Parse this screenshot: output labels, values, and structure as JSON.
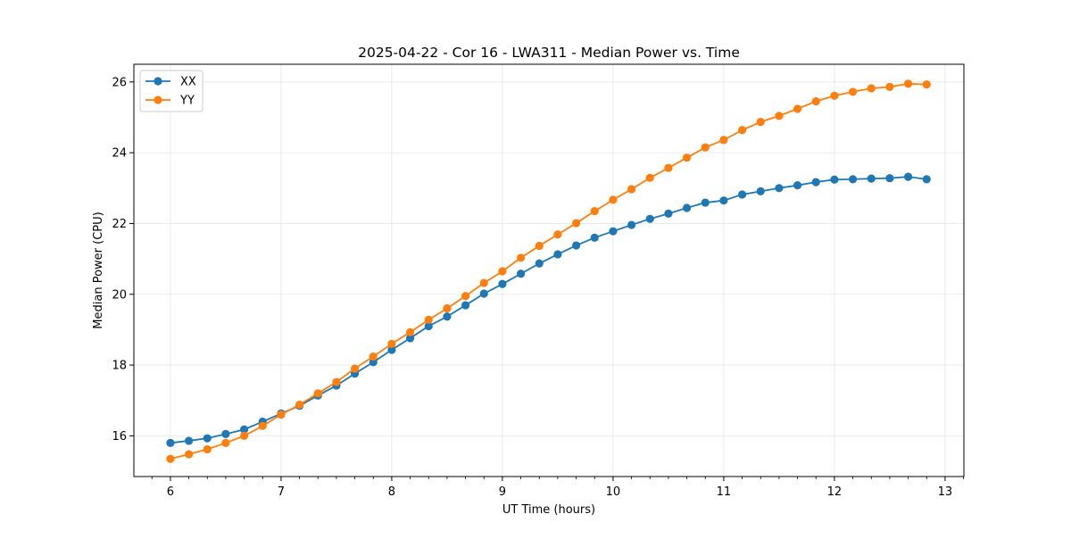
{
  "chart_data": {
    "type": "line",
    "title": "2025-04-22 - Cor 16 - LWA311 - Median Power vs. Time",
    "xlabel": "UT Time (hours)",
    "ylabel": "Median Power (CPU)",
    "xlim": [
      5.67,
      13.17
    ],
    "ylim": [
      14.85,
      26.5
    ],
    "xticks": [
      6,
      7,
      8,
      9,
      10,
      11,
      12,
      13
    ],
    "yticks": [
      16,
      18,
      20,
      22,
      24,
      26
    ],
    "xticks_minor": [
      5.8333,
      6.1667,
      6.3333,
      6.5,
      6.6667,
      6.8333,
      7.1667,
      7.3333,
      7.5,
      7.6667,
      7.8333,
      8.1667,
      8.3333,
      8.5,
      8.6667,
      8.8333,
      9.1667,
      9.3333,
      9.5,
      9.6667,
      9.8333,
      10.1667,
      10.3333,
      10.5,
      10.6667,
      10.8333,
      11.1667,
      11.3333,
      11.5,
      11.6667,
      11.8333,
      12.1667,
      12.3333,
      12.5,
      12.6667,
      12.8333,
      13.1667
    ],
    "grid": true,
    "legend_position": "upper-left",
    "x": [
      6.0,
      6.1667,
      6.3333,
      6.5,
      6.6667,
      6.8333,
      7.0,
      7.1667,
      7.3333,
      7.5,
      7.6667,
      7.8333,
      8.0,
      8.1667,
      8.3333,
      8.5,
      8.6667,
      8.8333,
      9.0,
      9.1667,
      9.3333,
      9.5,
      9.6667,
      9.8333,
      10.0,
      10.1667,
      10.3333,
      10.5,
      10.6667,
      10.8333,
      11.0,
      11.1667,
      11.3333,
      11.5,
      11.6667,
      11.8333,
      12.0,
      12.1667,
      12.3333,
      12.5,
      12.6667,
      12.8333
    ],
    "series": [
      {
        "name": "XX",
        "color": "#1f77b4",
        "values": [
          15.8,
          15.86,
          15.93,
          16.05,
          16.18,
          16.4,
          16.63,
          16.85,
          17.14,
          17.42,
          17.76,
          18.08,
          18.43,
          18.76,
          19.1,
          19.37,
          19.69,
          20.02,
          20.29,
          20.58,
          20.87,
          21.13,
          21.38,
          21.6,
          21.78,
          21.96,
          22.13,
          22.28,
          22.44,
          22.59,
          22.65,
          22.82,
          22.91,
          23.0,
          23.08,
          23.17,
          23.24,
          23.25,
          23.27,
          23.28,
          23.32,
          23.25
        ]
      },
      {
        "name": "YY",
        "color": "#ff7f0e",
        "values": [
          15.35,
          15.48,
          15.62,
          15.8,
          16.0,
          16.28,
          16.6,
          16.88,
          17.2,
          17.52,
          17.9,
          18.24,
          18.6,
          18.93,
          19.28,
          19.6,
          19.95,
          20.32,
          20.65,
          21.03,
          21.37,
          21.69,
          22.01,
          22.35,
          22.67,
          22.97,
          23.29,
          23.57,
          23.86,
          24.15,
          24.36,
          24.64,
          24.87,
          25.04,
          25.24,
          25.45,
          25.61,
          25.72,
          25.82,
          25.86,
          25.95,
          25.93
        ]
      }
    ]
  }
}
